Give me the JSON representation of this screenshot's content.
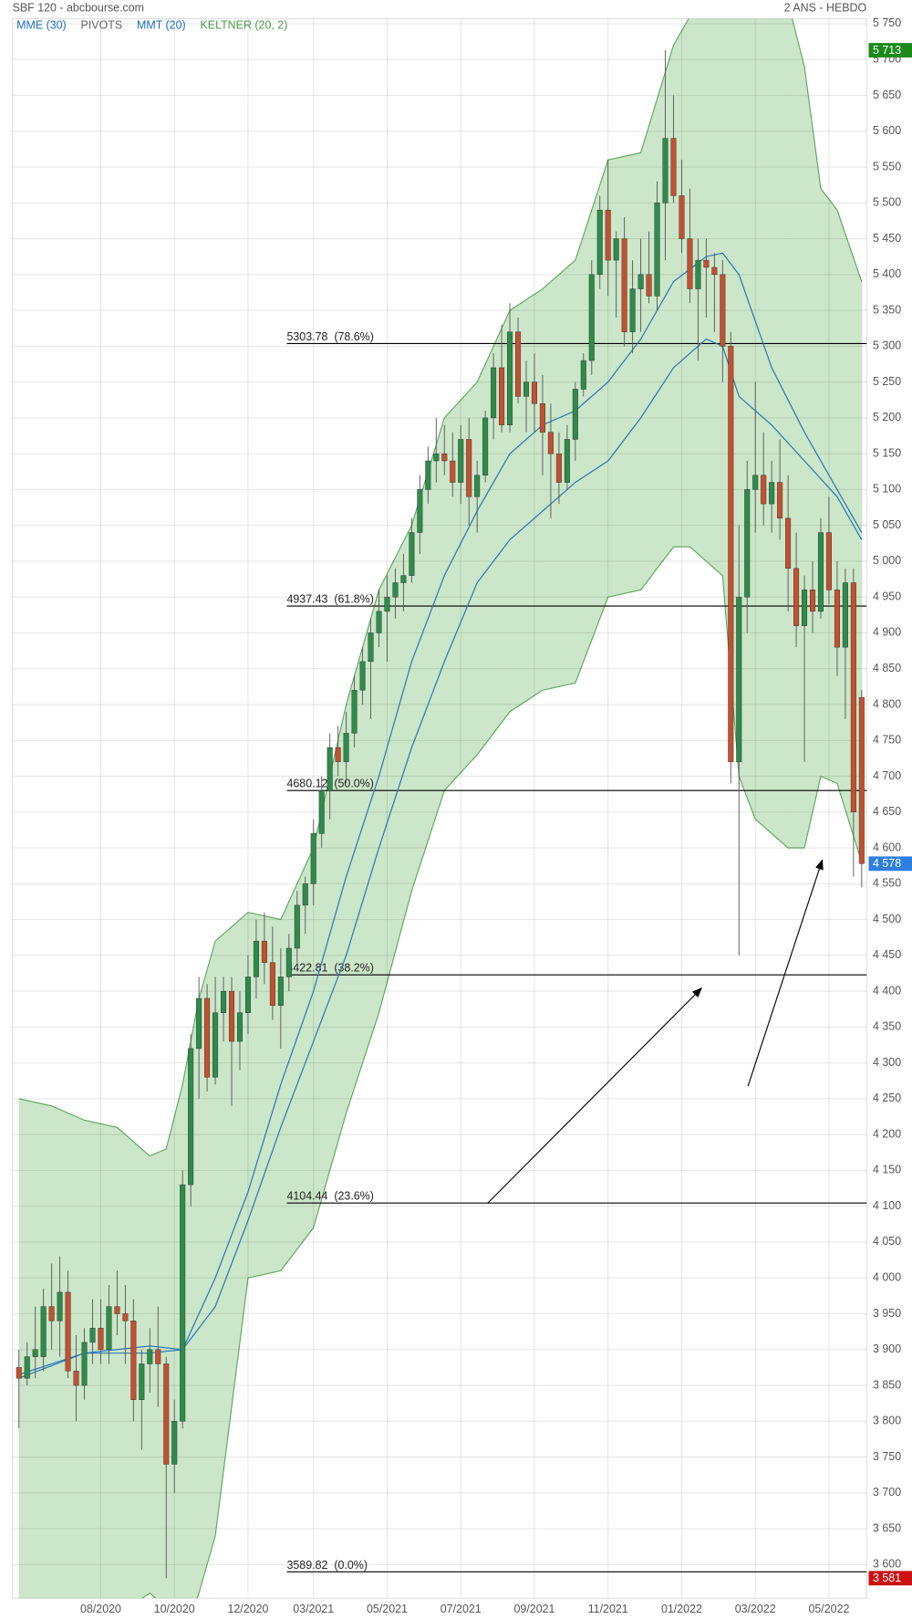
{
  "chart_data": {
    "type": "candlestick",
    "title": "SBF 120 - abcbourse.com",
    "subtitle": "2 ANS - HEBDO",
    "legend": [
      {
        "name": "MME (30)",
        "color": "#1f6fbf"
      },
      {
        "name": "PIVOTS",
        "color": "#666666"
      },
      {
        "name": "MMT (20)",
        "color": "#1f6fbf"
      },
      {
        "name": "KELTNER (20, 2)",
        "color": "#4a9e4a"
      }
    ],
    "categories": [
      null,
      null,
      null,
      null,
      null,
      null,
      null,
      null,
      null,
      null,
      "08/2020",
      null,
      null,
      null,
      null,
      null,
      null,
      null,
      null,
      "10/2020",
      null,
      null,
      null,
      null,
      null,
      null,
      null,
      null,
      "12/2020",
      null,
      null,
      null,
      null,
      null,
      null,
      null,
      "03/2021",
      null,
      null,
      null,
      null,
      null,
      null,
      null,
      null,
      "05/2021",
      null,
      null,
      null,
      null,
      null,
      null,
      null,
      null,
      "07/2021",
      null,
      null,
      null,
      null,
      null,
      null,
      null,
      null,
      "09/2021",
      null,
      null,
      null,
      null,
      null,
      null,
      null,
      null,
      "11/2021",
      null,
      null,
      null,
      null,
      null,
      null,
      null,
      null,
      "01/2022",
      null,
      null,
      null,
      null,
      null,
      null,
      null,
      null,
      "03/2022",
      null,
      null,
      null,
      null,
      null,
      null,
      null,
      null,
      "05/2022",
      null,
      null,
      null,
      null
    ],
    "open": [
      3875,
      3860,
      3890,
      3890,
      3960,
      3940,
      3980,
      3870,
      3850,
      3910,
      3930,
      3900,
      3960,
      3950,
      3940,
      3830,
      3880,
      3900,
      3880,
      3740,
      3800,
      4130,
      4320,
      4390,
      4280,
      4370,
      4400,
      4330,
      4370,
      4420,
      4470,
      4440,
      4380,
      4420,
      4460,
      4520,
      4550,
      4620,
      4680,
      4740,
      4720,
      4760,
      4820,
      4860,
      4900,
      4930,
      4950,
      4970,
      4980,
      5040,
      5100,
      5140,
      5150,
      5140,
      5110,
      5170,
      5090,
      5120,
      5200,
      5270,
      5190,
      5320,
      5230,
      5250,
      5220,
      5180,
      5150,
      5110,
      5170,
      5240,
      5280,
      5400,
      5490,
      5420,
      5450,
      5320,
      5380,
      5400,
      5370,
      5500,
      5590,
      5510,
      5450,
      5380,
      5420,
      5410,
      5400,
      5300,
      4720,
      4950,
      5100,
      5120,
      5080,
      5110,
      5060,
      4990,
      4910,
      4960,
      4930,
      5040,
      4960,
      4880,
      4970,
      4810
    ],
    "high": [
      3900,
      3910,
      3960,
      3985,
      4020,
      4030,
      4010,
      3920,
      3930,
      3970,
      3970,
      3990,
      4010,
      3990,
      3970,
      3900,
      3930,
      3960,
      3890,
      3830,
      4150,
      4340,
      4420,
      4410,
      4420,
      4420,
      4420,
      4400,
      4450,
      4500,
      4510,
      4490,
      4460,
      4480,
      4540,
      4560,
      4640,
      4700,
      4760,
      4770,
      4790,
      4840,
      4880,
      4920,
      4960,
      4980,
      4990,
      5010,
      5060,
      5120,
      5160,
      5200,
      5190,
      5180,
      5190,
      5200,
      5140,
      5210,
      5290,
      5330,
      5360,
      5340,
      5280,
      5290,
      5260,
      5220,
      5180,
      5190,
      5250,
      5290,
      5420,
      5510,
      5560,
      5460,
      5480,
      5420,
      5450,
      5460,
      5530,
      5713,
      5650,
      5560,
      5520,
      5450,
      5450,
      5430,
      5420,
      5320,
      5050,
      5140,
      5250,
      5180,
      5140,
      5170,
      5120,
      5040,
      4980,
      5000,
      5060,
      5090,
      5000,
      4990,
      4990,
      4820
    ],
    "low": [
      3790,
      3850,
      3860,
      3870,
      3900,
      3890,
      3860,
      3800,
      3830,
      3880,
      3880,
      3880,
      3920,
      3880,
      3800,
      3760,
      3840,
      3820,
      3581,
      3700,
      3790,
      4100,
      4250,
      4260,
      4270,
      4330,
      4240,
      4290,
      4340,
      4390,
      4410,
      4360,
      4320,
      4400,
      4440,
      4480,
      4520,
      4600,
      4640,
      4700,
      4690,
      4740,
      4800,
      4780,
      4880,
      4860,
      4920,
      4930,
      4970,
      5010,
      5080,
      5110,
      5120,
      5090,
      5080,
      5050,
      5040,
      5110,
      5170,
      5180,
      5180,
      5220,
      5180,
      5180,
      5120,
      5060,
      5080,
      5100,
      5140,
      5230,
      5260,
      5380,
      5370,
      5340,
      5300,
      5290,
      5320,
      5360,
      5350,
      5420,
      5500,
      5430,
      5360,
      5280,
      5340,
      5320,
      5250,
      4690,
      4450,
      4900,
      5040,
      5050,
      5040,
      5030,
      4930,
      4880,
      4720,
      4900,
      4920,
      4940,
      4840,
      4780,
      4560,
      4545
    ],
    "close": [
      3860,
      3890,
      3900,
      3960,
      3940,
      3980,
      3870,
      3850,
      3910,
      3930,
      3900,
      3960,
      3950,
      3940,
      3830,
      3880,
      3900,
      3880,
      3740,
      3800,
      4130,
      4320,
      4390,
      4280,
      4370,
      4400,
      4330,
      4370,
      4420,
      4470,
      4440,
      4380,
      4420,
      4460,
      4520,
      4550,
      4620,
      4680,
      4740,
      4720,
      4760,
      4820,
      4860,
      4900,
      4930,
      4950,
      4970,
      4980,
      5040,
      5100,
      5140,
      5150,
      5140,
      5110,
      5170,
      5090,
      5120,
      5200,
      5270,
      5190,
      5320,
      5230,
      5250,
      5220,
      5180,
      5150,
      5110,
      5170,
      5240,
      5280,
      5400,
      5490,
      5420,
      5450,
      5320,
      5380,
      5400,
      5370,
      5500,
      5590,
      5510,
      5450,
      5380,
      5420,
      5410,
      5400,
      5300,
      4720,
      4950,
      5100,
      5120,
      5080,
      5110,
      5060,
      4990,
      4910,
      4960,
      4930,
      5040,
      4960,
      4880,
      4970,
      4650,
      4578
    ],
    "up_color": "#2e8b4a",
    "down_color": "#c4502f",
    "overlays": [
      {
        "color": "#2a7ab8",
        "x": [
          0,
          8,
          16,
          20,
          24,
          28,
          32,
          36,
          40,
          44,
          48,
          52,
          56,
          60,
          64,
          68,
          72,
          76,
          80,
          84,
          86,
          88,
          92,
          96,
          100,
          103
        ],
        "values": [
          3865,
          3895,
          3895,
          3900,
          4000,
          4120,
          4270,
          4400,
          4560,
          4700,
          4860,
          4980,
          5070,
          5150,
          5190,
          5210,
          5250,
          5310,
          5390,
          5425,
          5430,
          5400,
          5270,
          5180,
          5100,
          5040
        ]
      },
      {
        "color": "#2a7ab8",
        "x": [
          0,
          8,
          16,
          20,
          24,
          28,
          32,
          36,
          40,
          44,
          48,
          52,
          56,
          60,
          64,
          68,
          72,
          76,
          80,
          84,
          86,
          88,
          92,
          96,
          100,
          103
        ],
        "values": [
          3860,
          3895,
          3905,
          3900,
          3960,
          4080,
          4210,
          4330,
          4450,
          4600,
          4740,
          4860,
          4970,
          5030,
          5070,
          5110,
          5140,
          5200,
          5270,
          5310,
          5300,
          5230,
          5190,
          5140,
          5090,
          5030
        ]
      }
    ],
    "keltner": {
      "color": "#5aa85a",
      "fill": "#cce6c9",
      "x": [
        0,
        4,
        8,
        12,
        16,
        18,
        20,
        22,
        24,
        28,
        32,
        36,
        40,
        44,
        48,
        52,
        56,
        60,
        64,
        68,
        72,
        76,
        80,
        82,
        84,
        86,
        88,
        90,
        94,
        96,
        98,
        100,
        103
      ],
      "upper": [
        4250,
        4240,
        4220,
        4210,
        4170,
        4180,
        4270,
        4390,
        4470,
        4510,
        4500,
        4600,
        4800,
        4960,
        5050,
        5200,
        5250,
        5350,
        5380,
        5420,
        5560,
        5570,
        5720,
        5760,
        5780,
        5790,
        5790,
        5790,
        5780,
        5690,
        5520,
        5490,
        5390
      ],
      "lower": [
        3520,
        3510,
        3540,
        3530,
        3560,
        3540,
        3500,
        3560,
        3640,
        4000,
        4010,
        4070,
        4230,
        4370,
        4540,
        4680,
        4730,
        4790,
        4820,
        4830,
        4950,
        4960,
        5020,
        5020,
        5000,
        4980,
        4700,
        4640,
        4600,
        4600,
        4700,
        4690,
        4580
      ]
    },
    "fib_levels": [
      {
        "value": 5303.78,
        "label": "5303.78  (78.6%)"
      },
      {
        "value": 4937.43,
        "label": "4937.43  (61.8%)"
      },
      {
        "value": 4680.12,
        "label": "4680.12  (50.0%)"
      },
      {
        "value": 4422.81,
        "label": "4422.81  (38.2%)"
      },
      {
        "value": 4104.44,
        "label": "4104.44  (23.6%)"
      },
      {
        "value": 3589.82,
        "label": "3589.82  (0.0%)"
      }
    ],
    "price_tags": [
      {
        "value": 5713,
        "label": "5 713",
        "color": "#1a8a1a"
      },
      {
        "value": 4578,
        "label": "4 578",
        "color": "#2f7fe0"
      },
      {
        "value": 3581,
        "label": "3 581",
        "color": "#cc1111"
      }
    ],
    "xlim": [
      -0.8,
      103.6
    ],
    "ylim": [
      3553,
      5757
    ],
    "grid": true,
    "yticks": [
      {
        "value": 3600,
        "label": "3 600"
      },
      {
        "value": 3650,
        "label": "3 650"
      },
      {
        "value": 3700,
        "label": "3 700"
      },
      {
        "value": 3750,
        "label": "3 750"
      },
      {
        "value": 3800,
        "label": "3 800"
      },
      {
        "value": 3850,
        "label": "3 850"
      },
      {
        "value": 3900,
        "label": "3 900"
      },
      {
        "value": 3950,
        "label": "3 950"
      },
      {
        "value": 4000,
        "label": "4 000"
      },
      {
        "value": 4050,
        "label": "4 050"
      },
      {
        "value": 4100,
        "label": "4 100"
      },
      {
        "value": 4150,
        "label": "4 150"
      },
      {
        "value": 4200,
        "label": "4 200"
      },
      {
        "value": 4250,
        "label": "4 250"
      },
      {
        "value": 4300,
        "label": "4 300"
      },
      {
        "value": 4350,
        "label": "4 350"
      },
      {
        "value": 4400,
        "label": "4 400"
      },
      {
        "value": 4450,
        "label": "4 450"
      },
      {
        "value": 4500,
        "label": "4 500"
      },
      {
        "value": 4550,
        "label": "4 550"
      },
      {
        "value": 4600,
        "label": "4 600"
      },
      {
        "value": 4650,
        "label": "4 650"
      },
      {
        "value": 4700,
        "label": "4 700"
      },
      {
        "value": 4750,
        "label": "4 750"
      },
      {
        "value": 4800,
        "label": "4 800"
      },
      {
        "value": 4850,
        "label": "4 850"
      },
      {
        "value": 4900,
        "label": "4 900"
      },
      {
        "value": 4950,
        "label": "4 950"
      },
      {
        "value": 5000,
        "label": "5 000"
      },
      {
        "value": 5050,
        "label": "5 050"
      },
      {
        "value": 5100,
        "label": "5 100"
      },
      {
        "value": 5150,
        "label": "5 150"
      },
      {
        "value": 5200,
        "label": "5 200"
      },
      {
        "value": 5250,
        "label": "5 250"
      },
      {
        "value": 5300,
        "label": "5 300"
      },
      {
        "value": 5350,
        "label": "5 350"
      },
      {
        "value": 5400,
        "label": "5 400"
      },
      {
        "value": 5450,
        "label": "5 450"
      },
      {
        "value": 5500,
        "label": "5 500"
      },
      {
        "value": 5550,
        "label": "5 550"
      },
      {
        "value": 5600,
        "label": "5 600"
      },
      {
        "value": 5650,
        "label": "5 650"
      },
      {
        "value": 5700,
        "label": "5 700"
      },
      {
        "value": 5750,
        "label": "5 750"
      }
    ]
  }
}
